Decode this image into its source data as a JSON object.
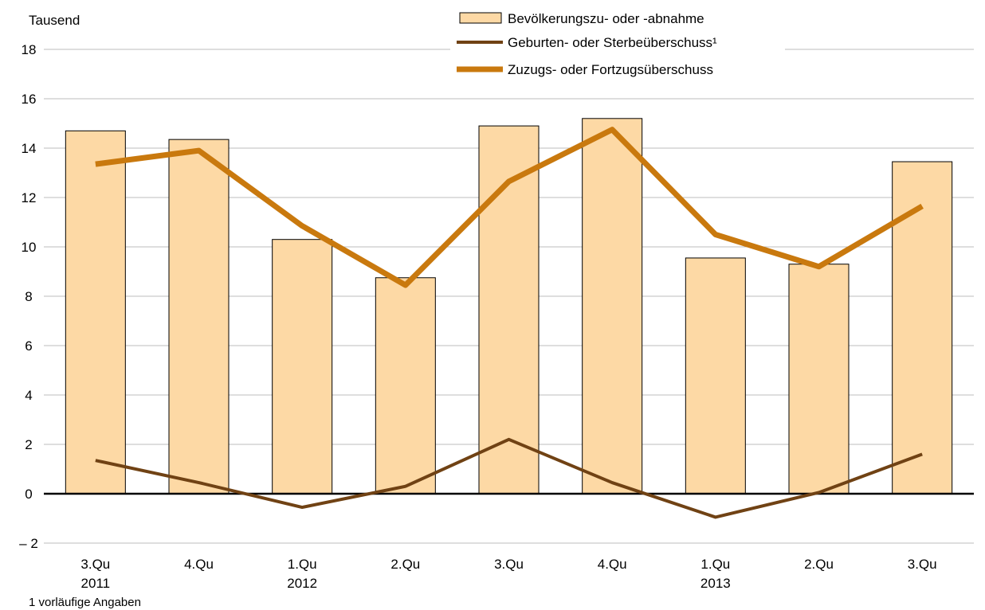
{
  "chart_data": {
    "type": "bar",
    "unit_label": "Tausend",
    "footnote": "1 vorläufige Angaben",
    "categories": [
      {
        "quarter": "3.Qu",
        "year": "2011"
      },
      {
        "quarter": "4.Qu",
        "year": ""
      },
      {
        "quarter": "1.Qu",
        "year": "2012"
      },
      {
        "quarter": "2.Qu",
        "year": ""
      },
      {
        "quarter": "3.Qu",
        "year": ""
      },
      {
        "quarter": "4.Qu",
        "year": ""
      },
      {
        "quarter": "1.Qu",
        "year": "2013"
      },
      {
        "quarter": "2.Qu",
        "year": ""
      },
      {
        "quarter": "3.Qu",
        "year": ""
      }
    ],
    "ylim": [
      -2,
      18
    ],
    "yticks": [
      {
        "value": -2,
        "label": "– 2"
      },
      {
        "value": 0,
        "label": "0"
      },
      {
        "value": 2,
        "label": "2"
      },
      {
        "value": 4,
        "label": "4"
      },
      {
        "value": 6,
        "label": "6"
      },
      {
        "value": 8,
        "label": "8"
      },
      {
        "value": 10,
        "label": "10"
      },
      {
        "value": 12,
        "label": "12"
      },
      {
        "value": 14,
        "label": "14"
      },
      {
        "value": 16,
        "label": "16"
      },
      {
        "value": 18,
        "label": "18"
      }
    ],
    "grid": true,
    "legend_position": "top-right",
    "series": [
      {
        "name": "Bevölkerungszu- oder -abnahme",
        "kind": "bar",
        "color": "#FDD9A5",
        "values": [
          14.7,
          14.35,
          10.3,
          8.75,
          14.9,
          15.2,
          9.55,
          9.3,
          13.45
        ]
      },
      {
        "name": "Geburten- oder Sterbeüberschuss¹",
        "kind": "line",
        "color": "#704214",
        "values": [
          1.35,
          0.45,
          -0.55,
          0.3,
          2.2,
          0.45,
          -0.95,
          0.05,
          1.6
        ]
      },
      {
        "name": "Zuzugs- oder Fortzugsüberschuss",
        "kind": "line",
        "color": "#C9790E",
        "values": [
          13.35,
          13.9,
          10.85,
          8.45,
          12.65,
          14.75,
          10.5,
          9.2,
          11.65
        ]
      }
    ]
  }
}
